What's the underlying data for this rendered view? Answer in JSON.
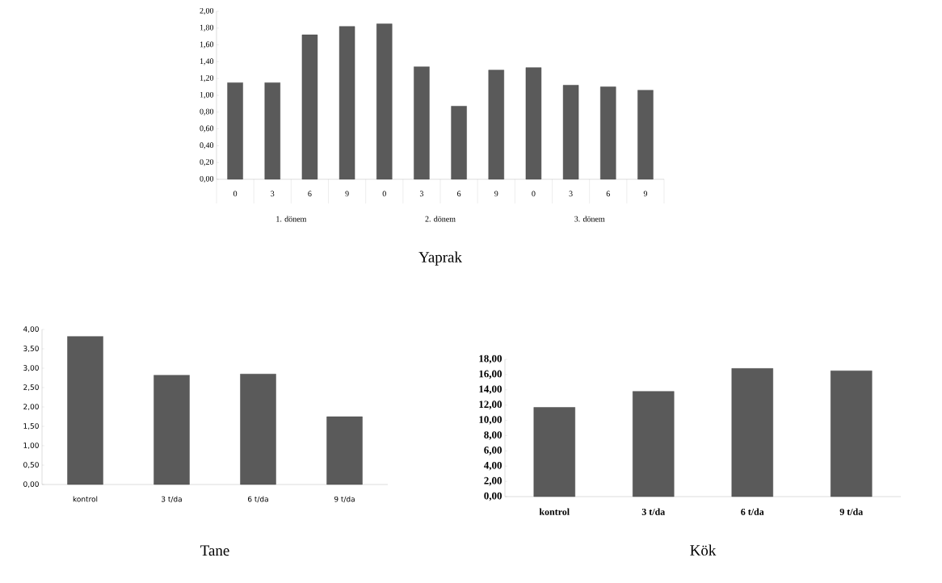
{
  "chart_data": [
    {
      "type": "bar",
      "title": "Yaprak",
      "categories": [
        "0",
        "3",
        "6",
        "9",
        "0",
        "3",
        "6",
        "9",
        "0",
        "3",
        "6",
        "9"
      ],
      "values": [
        1.15,
        1.15,
        1.72,
        1.82,
        1.85,
        1.34,
        0.87,
        1.3,
        1.33,
        1.12,
        1.1,
        1.06
      ],
      "color": "#5a5a5a",
      "ylim": [
        0,
        2
      ],
      "yticks": [
        {
          "value": 0,
          "label": "0,00"
        },
        {
          "value": 0.2,
          "label": "0,20"
        },
        {
          "value": 0.4,
          "label": "0,40"
        },
        {
          "value": 0.6,
          "label": "0,60"
        },
        {
          "value": 0.8,
          "label": "0,80"
        },
        {
          "value": 1.0,
          "label": "1,00"
        },
        {
          "value": 1.2,
          "label": "1,20"
        },
        {
          "value": 1.4,
          "label": "1,40"
        },
        {
          "value": 1.6,
          "label": "1,60"
        },
        {
          "value": 1.8,
          "label": "1,80"
        },
        {
          "value": 2.0,
          "label": "2,00"
        }
      ],
      "annotations": [
        "1. dönem",
        "2. dönem",
        "3. dönem"
      ]
    },
    {
      "type": "bar",
      "title": "Tane",
      "categories": [
        "kontrol",
        "3 t/da",
        "6 t/da",
        "9 t/da"
      ],
      "values": [
        3.82,
        2.82,
        2.85,
        1.75
      ],
      "color": "#5a5a5a",
      "ylim": [
        0,
        4
      ],
      "yticks": [
        {
          "value": 0,
          "label": "0,00"
        },
        {
          "value": 0.5,
          "label": "0,50"
        },
        {
          "value": 1.0,
          "label": "1,00"
        },
        {
          "value": 1.5,
          "label": "1,50"
        },
        {
          "value": 2.0,
          "label": "2,00"
        },
        {
          "value": 2.5,
          "label": "2,50"
        },
        {
          "value": 3.0,
          "label": "3,00"
        },
        {
          "value": 3.5,
          "label": "3,50"
        },
        {
          "value": 4.0,
          "label": "4,00"
        }
      ]
    },
    {
      "type": "bar",
      "title": "Kök",
      "categories": [
        "kontrol",
        "3 t/da",
        "6 t/da",
        "9 t/da"
      ],
      "values": [
        11.7,
        13.8,
        16.8,
        16.5
      ],
      "color": "#5a5a5a",
      "ylim": [
        0,
        18
      ],
      "yticks": [
        {
          "value": 0,
          "label": "0,00"
        },
        {
          "value": 2,
          "label": "2,00"
        },
        {
          "value": 4,
          "label": "4,00"
        },
        {
          "value": 6,
          "label": "6,00"
        },
        {
          "value": 8,
          "label": "8,00"
        },
        {
          "value": 10,
          "label": "10,00"
        },
        {
          "value": 12,
          "label": "12,00"
        },
        {
          "value": 14,
          "label": "14,00"
        },
        {
          "value": 16,
          "label": "16,00"
        },
        {
          "value": 18,
          "label": "18,00"
        }
      ]
    }
  ]
}
